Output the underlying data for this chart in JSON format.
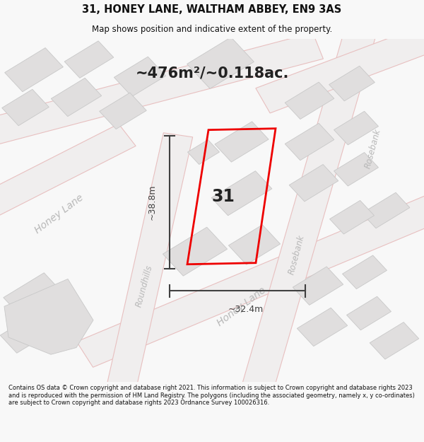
{
  "title_line1": "31, HONEY LANE, WALTHAM ABBEY, EN9 3AS",
  "title_line2": "Map shows position and indicative extent of the property.",
  "area_text": "~476m²/~0.118ac.",
  "number_label": "31",
  "dim_height": "~38.8m",
  "dim_width": "~32.4m",
  "footer_text": "Contains OS data © Crown copyright and database right 2021. This information is subject to Crown copyright and database rights 2023 and is reproduced with the permission of HM Land Registry. The polygons (including the associated geometry, namely x, y co-ordinates) are subject to Crown copyright and database rights 2023 Ordnance Survey 100026316.",
  "bg_color": "#f8f8f8",
  "map_bg": "#f8f6f6",
  "building_fill": "#e0dede",
  "building_edge": "#c8c8c8",
  "road_line_color": "#e8c0c0",
  "property_color": "#ee0000",
  "dim_color": "#404040",
  "text_color": "#222222",
  "street_text_color": "#b8b8b8",
  "title_color": "#111111",
  "road_fill": "#f0eeee",
  "road_outline": "#e0c0c0"
}
